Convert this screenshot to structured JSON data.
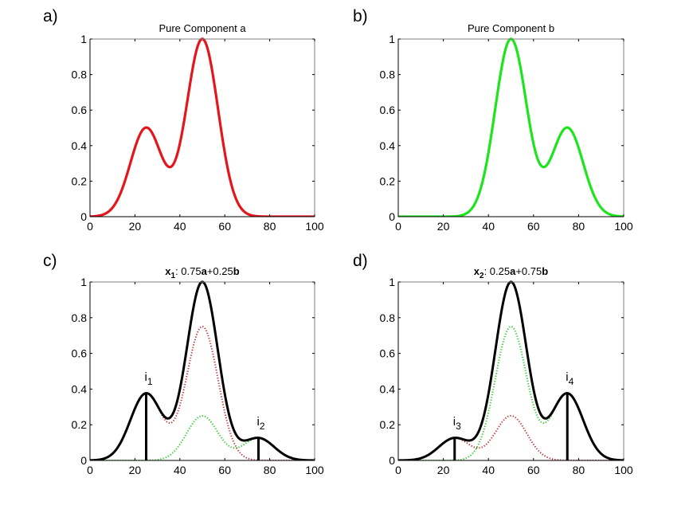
{
  "figure": {
    "panels": [
      "a",
      "b",
      "c",
      "d"
    ]
  },
  "chart_data": [
    {
      "id": "a",
      "type": "line",
      "panel_label": "a)",
      "title": "Pure Component a",
      "title_parts": [],
      "xlabel": "",
      "ylabel": "",
      "xlim": [
        0,
        100
      ],
      "ylim": [
        0,
        1
      ],
      "xticks": [
        0,
        20,
        40,
        60,
        80,
        100
      ],
      "yticks": [
        0,
        0.2,
        0.4,
        0.6,
        0.8,
        1
      ],
      "ytick_labels": [
        "0",
        "0.2",
        "0.4",
        "0.6",
        "0.8",
        "1"
      ],
      "grid": false,
      "series": [
        {
          "name": "Pure component a",
          "style": "solid",
          "color": "#e4161b",
          "peaks": [
            {
              "center": 25,
              "height": 0.5,
              "sigma": 7
            },
            {
              "center": 50,
              "height": 1.0,
              "sigma": 7
            }
          ],
          "x": [
            0,
            10,
            20,
            25,
            30,
            36,
            40,
            50,
            60,
            70,
            80,
            90,
            100
          ],
          "y": [
            0.0,
            0.05,
            0.39,
            0.5,
            0.43,
            0.28,
            0.4,
            1.0,
            0.36,
            0.01,
            0.0,
            0.0,
            0.0
          ]
        }
      ],
      "annotations": []
    },
    {
      "id": "b",
      "type": "line",
      "panel_label": "b)",
      "title": "Pure Component b",
      "title_parts": [],
      "xlabel": "",
      "ylabel": "",
      "xlim": [
        0,
        100
      ],
      "ylim": [
        0,
        1
      ],
      "xticks": [
        0,
        20,
        40,
        60,
        80,
        100
      ],
      "yticks": [
        0,
        0.2,
        0.4,
        0.6,
        0.8,
        1
      ],
      "ytick_labels": [
        "0",
        "0.2",
        "0.4",
        "0.6",
        "0.8",
        "1"
      ],
      "grid": false,
      "series": [
        {
          "name": "Pure component b",
          "style": "solid",
          "color": "#1ee41e",
          "peaks": [
            {
              "center": 50,
              "height": 1.0,
              "sigma": 7
            },
            {
              "center": 75,
              "height": 0.5,
              "sigma": 7
            }
          ],
          "x": [
            0,
            10,
            20,
            30,
            40,
            50,
            60,
            64,
            70,
            75,
            80,
            90,
            100
          ],
          "y": [
            0.0,
            0.0,
            0.0,
            0.02,
            0.4,
            1.0,
            0.43,
            0.28,
            0.39,
            0.5,
            0.39,
            0.05,
            0.0
          ]
        }
      ],
      "annotations": []
    },
    {
      "id": "c",
      "type": "line",
      "panel_label": "c)",
      "title": "x1: 0.75a+0.25b",
      "title_parts": [
        {
          "text": "x",
          "bold": true
        },
        {
          "text": "1",
          "bold": true,
          "sub": true
        },
        {
          "text": ": 0.75",
          "bold": false
        },
        {
          "text": "a",
          "bold": true
        },
        {
          "text": "+0.25",
          "bold": false
        },
        {
          "text": "b",
          "bold": true
        }
      ],
      "xlabel": "",
      "ylabel": "",
      "xlim": [
        0,
        100
      ],
      "ylim": [
        0,
        1
      ],
      "xticks": [
        0,
        20,
        40,
        60,
        80,
        100
      ],
      "yticks": [
        0,
        0.2,
        0.4,
        0.6,
        0.8,
        1
      ],
      "ytick_labels": [
        "0",
        "0.2",
        "0.4",
        "0.6",
        "0.8",
        "1"
      ],
      "grid": false,
      "series": [
        {
          "name": "0.75a",
          "style": "dotted",
          "color": "#c0282d",
          "scale_of": "a",
          "scale": 0.75,
          "x": [
            0,
            25,
            36,
            50,
            70,
            100
          ],
          "y": [
            0.0,
            0.375,
            0.21,
            0.75,
            0.01,
            0.0
          ]
        },
        {
          "name": "0.25b",
          "style": "dotted",
          "color": "#22cc22",
          "scale_of": "b",
          "scale": 0.25,
          "x": [
            0,
            30,
            50,
            64,
            75,
            100
          ],
          "y": [
            0.0,
            0.005,
            0.25,
            0.07,
            0.125,
            0.0
          ]
        },
        {
          "name": "x1 mixture",
          "style": "solid",
          "color": "#000000",
          "mix": {
            "a": 0.75,
            "b": 0.25
          },
          "x": [
            0,
            25,
            35,
            50,
            68,
            75,
            100
          ],
          "y": [
            0.0,
            0.38,
            0.23,
            1.0,
            0.11,
            0.13,
            0.0
          ]
        }
      ],
      "annotations": [
        {
          "label": "i",
          "sub": "1",
          "x": 25,
          "y": 0.375
        },
        {
          "label": "i",
          "sub": "2",
          "x": 75,
          "y": 0.125
        }
      ]
    },
    {
      "id": "d",
      "type": "line",
      "panel_label": "d)",
      "title": "x2: 0.25a+0.75b",
      "title_parts": [
        {
          "text": "x",
          "bold": true
        },
        {
          "text": "2",
          "bold": true,
          "sub": true
        },
        {
          "text": ": 0.25",
          "bold": false
        },
        {
          "text": "a",
          "bold": true
        },
        {
          "text": "+0.75",
          "bold": false
        },
        {
          "text": "b",
          "bold": true
        }
      ],
      "xlabel": "",
      "ylabel": "",
      "xlim": [
        0,
        100
      ],
      "ylim": [
        0,
        1
      ],
      "xticks": [
        0,
        20,
        40,
        60,
        80,
        100
      ],
      "yticks": [
        0,
        0.2,
        0.4,
        0.6,
        0.8,
        1
      ],
      "ytick_labels": [
        "0",
        "0.2",
        "0.4",
        "0.6",
        "0.8",
        "1"
      ],
      "grid": false,
      "series": [
        {
          "name": "0.25a",
          "style": "dotted",
          "color": "#c0282d",
          "scale_of": "a",
          "scale": 0.25,
          "x": [
            0,
            25,
            36,
            50,
            70,
            100
          ],
          "y": [
            0.0,
            0.125,
            0.07,
            0.25,
            0.005,
            0.0
          ]
        },
        {
          "name": "0.75b",
          "style": "dotted",
          "color": "#22cc22",
          "scale_of": "b",
          "scale": 0.75,
          "x": [
            0,
            30,
            50,
            64,
            75,
            100
          ],
          "y": [
            0.0,
            0.015,
            0.75,
            0.21,
            0.375,
            0.0
          ]
        },
        {
          "name": "x2 mixture",
          "style": "solid",
          "color": "#000000",
          "mix": {
            "a": 0.25,
            "b": 0.75
          },
          "x": [
            0,
            25,
            32,
            50,
            65,
            75,
            100
          ],
          "y": [
            0.0,
            0.13,
            0.11,
            1.0,
            0.23,
            0.38,
            0.0
          ]
        }
      ],
      "annotations": [
        {
          "label": "i",
          "sub": "3",
          "x": 25,
          "y": 0.125
        },
        {
          "label": "i",
          "sub": "4",
          "x": 75,
          "y": 0.375
        }
      ]
    }
  ]
}
